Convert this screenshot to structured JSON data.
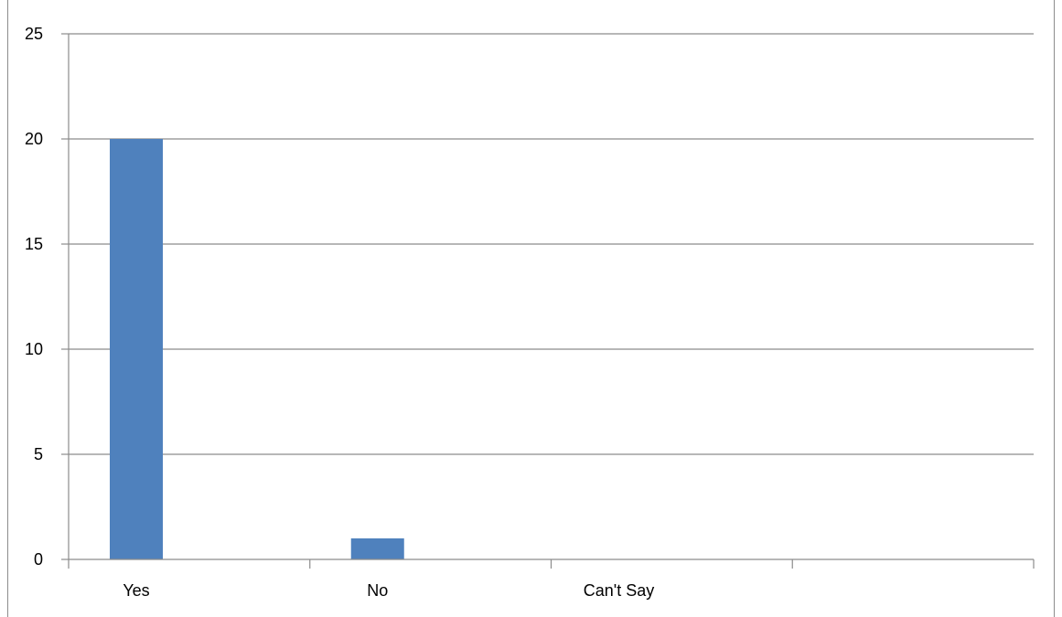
{
  "chart_data": {
    "type": "bar",
    "categories": [
      "Yes",
      "No",
      "Can't Say",
      ""
    ],
    "values": [
      20,
      1,
      0,
      0
    ],
    "title": "",
    "xlabel": "",
    "ylabel": "",
    "ylim": [
      0,
      25
    ],
    "yticks": [
      0,
      5,
      10,
      15,
      20,
      25
    ],
    "grid": true,
    "legend": "none",
    "colors": {
      "bar": "#4f81bd",
      "grid": "#8c8c8c",
      "text": "#000000"
    }
  }
}
